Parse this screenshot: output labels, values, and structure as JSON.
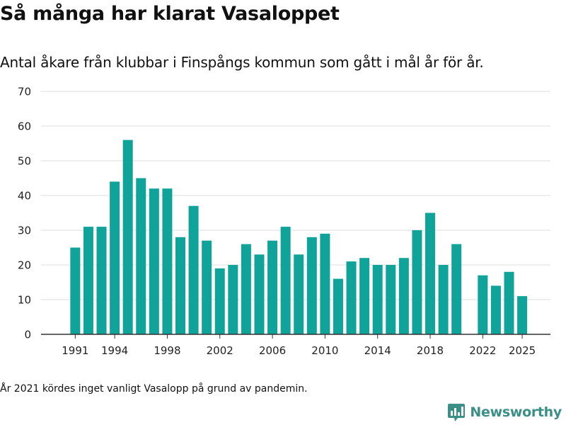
{
  "title": "Så många har klarat Vasaloppet",
  "subtitle": "Antal åkare från klubbar i Finspångs kommun som gått i mål år för år.",
  "note": "År 2021 kördes inget vanligt Vasalopp på grund av pandemin.",
  "brand": {
    "name": "Newsworthy",
    "icon": "newsworthy-logo-icon",
    "color": "#3a8f87"
  },
  "chart_data": {
    "type": "bar",
    "bar_color": "#10a399",
    "grid": true,
    "ylim": [
      0,
      70
    ],
    "xlim": [
      1990,
      2026
    ],
    "y_ticks": [
      0,
      10,
      20,
      30,
      40,
      50,
      60,
      70
    ],
    "x_ticks": [
      1991,
      1994,
      1998,
      2002,
      2006,
      2010,
      2014,
      2018,
      2022,
      2025
    ],
    "xlabel": "",
    "ylabel": "",
    "x": [
      1991,
      1992,
      1993,
      1994,
      1995,
      1996,
      1997,
      1998,
      1999,
      2000,
      2001,
      2002,
      2003,
      2004,
      2005,
      2006,
      2007,
      2008,
      2009,
      2010,
      2011,
      2012,
      2013,
      2014,
      2015,
      2016,
      2017,
      2018,
      2019,
      2020,
      2022,
      2023,
      2024,
      2025
    ],
    "values": [
      25,
      31,
      31,
      44,
      56,
      45,
      42,
      42,
      28,
      37,
      27,
      19,
      20,
      26,
      23,
      27,
      31,
      23,
      28,
      29,
      16,
      21,
      22,
      20,
      20,
      22,
      30,
      35,
      20,
      26,
      17,
      14,
      18,
      11
    ]
  }
}
